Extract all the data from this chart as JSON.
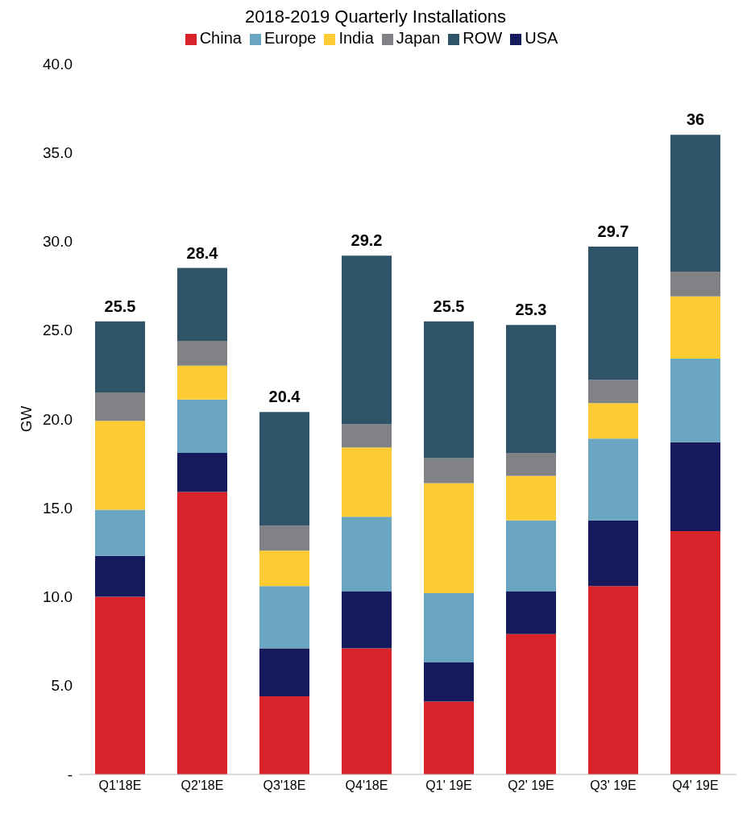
{
  "chart_data": {
    "type": "bar",
    "title": "2018-2019 Quarterly Installations",
    "ylabel": "GW",
    "stacked": true,
    "legend": "top",
    "grid": false,
    "categories": [
      "Q1'18E",
      "Q2'18E",
      "Q3'18E",
      "Q4'18E",
      "Q1' 19E",
      "Q2' 19E",
      "Q3' 19E",
      "Q4' 19E"
    ],
    "series": [
      {
        "name": "China",
        "color": "#d9232a",
        "values": [
          10.0,
          15.9,
          4.4,
          7.1,
          4.1,
          7.9,
          10.6,
          13.7
        ]
      },
      {
        "name": "USA",
        "color": "#141a5c",
        "values": [
          2.3,
          2.2,
          2.7,
          3.2,
          2.2,
          2.4,
          3.7,
          5.0
        ]
      },
      {
        "name": "Europe",
        "color": "#6aa5c1",
        "values": [
          2.6,
          3.0,
          3.5,
          4.2,
          3.9,
          4.0,
          4.6,
          4.7
        ]
      },
      {
        "name": "India",
        "color": "#fecb33",
        "values": [
          5.0,
          1.9,
          2.0,
          3.9,
          6.2,
          2.5,
          2.0,
          3.5
        ]
      },
      {
        "name": "Japan",
        "color": "#808285",
        "values": [
          1.6,
          1.4,
          1.4,
          1.3,
          1.4,
          1.3,
          1.3,
          1.4
        ]
      },
      {
        "name": "ROW",
        "color": "#2f5467",
        "values": [
          4.0,
          4.1,
          6.4,
          9.5,
          7.7,
          7.2,
          7.5,
          7.7
        ]
      }
    ],
    "totals": [
      "25.5",
      "28.4",
      "20.4",
      "29.2",
      "25.5",
      "25.3",
      "29.7",
      "36"
    ],
    "ylim": [
      0,
      40
    ],
    "yticks": [
      {
        "value": 0,
        "label": "-"
      },
      {
        "value": 5,
        "label": "5.0"
      },
      {
        "value": 10,
        "label": "10.0"
      },
      {
        "value": 15,
        "label": "15.0"
      },
      {
        "value": 20,
        "label": "20.0"
      },
      {
        "value": 25,
        "label": "25.0"
      },
      {
        "value": 30,
        "label": "30.0"
      },
      {
        "value": 35,
        "label": "35.0"
      },
      {
        "value": 40,
        "label": "40.0"
      }
    ]
  }
}
